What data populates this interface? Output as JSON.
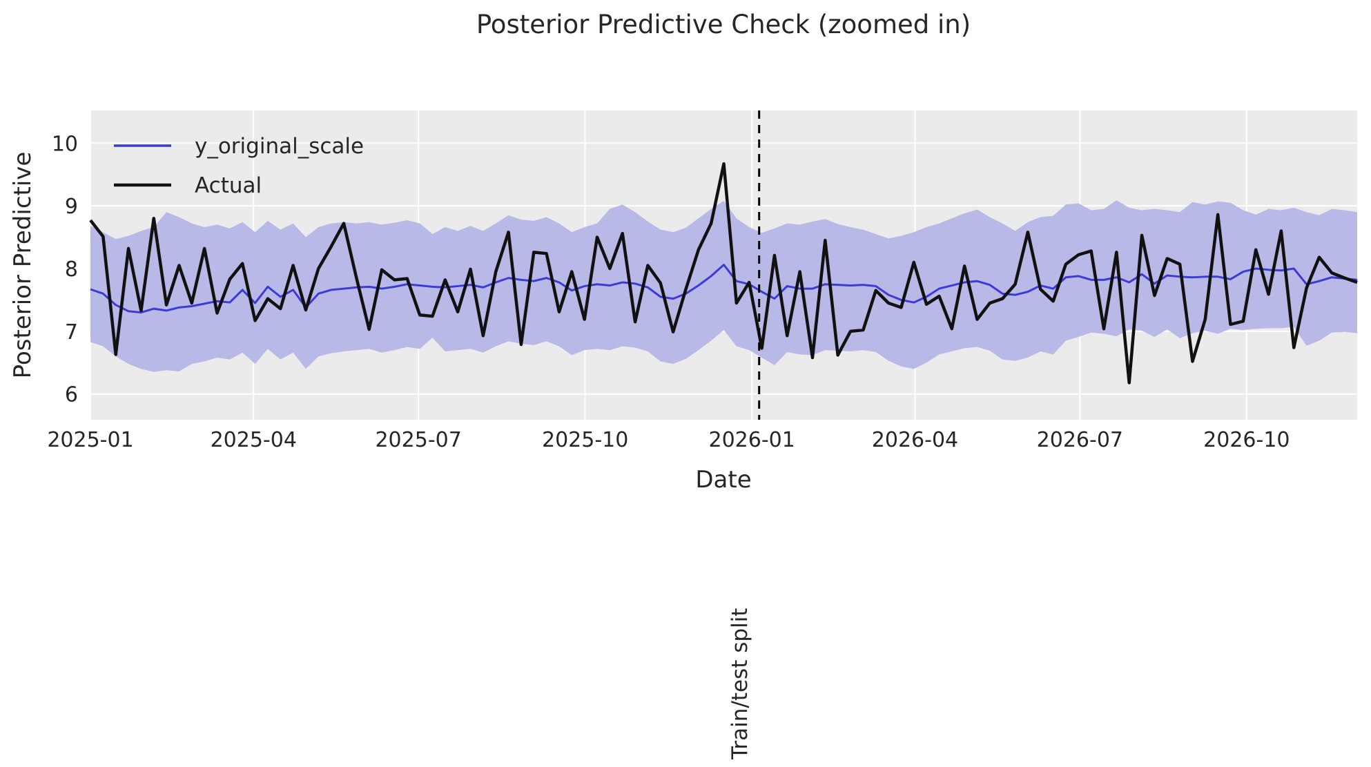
{
  "chart_data": {
    "type": "line",
    "title": "Posterior Predictive Check (zoomed in)",
    "xlabel": "Date",
    "ylabel": "Posterior Predictive",
    "legend_position": "upper left",
    "grid": true,
    "x_start_date": "2025-01-01",
    "x_end_date": "2026-12-01",
    "x_freq": "weekly",
    "n_points": 101,
    "x_total_days": 699,
    "ylim": [
      5.59,
      10.52
    ],
    "yticks": [
      6,
      7,
      8,
      9,
      10
    ],
    "ytick_labels": [
      "6",
      "7",
      "8",
      "9",
      "10"
    ],
    "xticks": [
      {
        "label": "2025-01",
        "day": 0
      },
      {
        "label": "2025-04",
        "day": 90
      },
      {
        "label": "2025-07",
        "day": 181
      },
      {
        "label": "2025-10",
        "day": 273
      },
      {
        "label": "2026-01",
        "day": 365
      },
      {
        "label": "2026-04",
        "day": 455
      },
      {
        "label": "2026-07",
        "day": 546
      },
      {
        "label": "2026-10",
        "day": 638
      }
    ],
    "split": {
      "label": "Train/test split",
      "date": "2026-01-05",
      "day": 369
    },
    "colors": {
      "figure_bg": "#ffffff",
      "plot_bg": "#ebebeb",
      "grid": "#ffffff",
      "text": "#262626",
      "blue_line": "#3b3bd6",
      "black_line": "#111111",
      "band": "#b9b9e8",
      "split_line": "#000000"
    },
    "legend": [
      {
        "label": "y_original_scale",
        "color": "#3b3bd6"
      },
      {
        "label": "Actual",
        "color": "#111111"
      }
    ],
    "series": [
      {
        "name": "y_original_scale",
        "values": [
          7.67,
          7.6,
          7.42,
          7.32,
          7.3,
          7.36,
          7.33,
          7.38,
          7.4,
          7.44,
          7.48,
          7.46,
          7.66,
          7.45,
          7.71,
          7.55,
          7.66,
          7.38,
          7.6,
          7.66,
          7.68,
          7.7,
          7.71,
          7.68,
          7.71,
          7.75,
          7.73,
          7.71,
          7.7,
          7.72,
          7.74,
          7.7,
          7.78,
          7.85,
          7.82,
          7.8,
          7.85,
          7.78,
          7.65,
          7.72,
          7.75,
          7.73,
          7.78,
          7.76,
          7.7,
          7.55,
          7.52,
          7.6,
          7.73,
          7.88,
          8.06,
          7.8,
          7.75,
          7.63,
          7.52,
          7.72,
          7.68,
          7.68,
          7.75,
          7.74,
          7.73,
          7.74,
          7.72,
          7.58,
          7.5,
          7.46,
          7.55,
          7.68,
          7.73,
          7.78,
          7.8,
          7.74,
          7.6,
          7.58,
          7.63,
          7.73,
          7.68,
          7.86,
          7.88,
          7.82,
          7.82,
          7.86,
          7.78,
          7.91,
          7.76,
          7.89,
          7.87,
          7.86,
          7.87,
          7.87,
          7.83,
          7.95,
          8.0,
          7.98,
          7.97,
          8.0,
          7.75,
          7.8,
          7.86,
          7.84,
          7.82
        ]
      },
      {
        "name": "Actual",
        "values": [
          8.77,
          8.51,
          6.63,
          8.32,
          7.33,
          8.8,
          7.42,
          8.05,
          7.45,
          8.32,
          7.29,
          7.83,
          8.08,
          7.17,
          7.52,
          7.36,
          8.05,
          7.34,
          8.0,
          8.35,
          8.72,
          7.85,
          7.03,
          7.98,
          7.82,
          7.84,
          7.26,
          7.24,
          7.82,
          7.31,
          7.99,
          6.93,
          7.95,
          8.58,
          6.79,
          8.26,
          8.24,
          7.31,
          7.95,
          7.19,
          8.5,
          8.0,
          8.56,
          7.15,
          8.05,
          7.77,
          6.99,
          7.67,
          8.3,
          8.72,
          9.67,
          7.45,
          7.78,
          6.73,
          8.21,
          6.93,
          7.95,
          6.58,
          8.45,
          6.62,
          7.0,
          7.02,
          7.65,
          7.45,
          7.38,
          8.1,
          7.43,
          7.56,
          7.04,
          8.04,
          7.19,
          7.45,
          7.52,
          7.75,
          8.58,
          7.67,
          7.48,
          8.07,
          8.22,
          8.28,
          7.04,
          8.26,
          6.18,
          8.53,
          7.57,
          8.16,
          8.07,
          6.52,
          7.19,
          8.86,
          7.11,
          7.16,
          8.3,
          7.59,
          8.6,
          6.74,
          7.69,
          8.18,
          7.93,
          7.85,
          7.78
        ]
      }
    ],
    "band_upper": [
      8.68,
      8.58,
      8.47,
      8.52,
      8.6,
      8.66,
      8.9,
      8.82,
      8.72,
      8.66,
      8.7,
      8.64,
      8.74,
      8.58,
      8.76,
      8.62,
      8.72,
      8.5,
      8.66,
      8.72,
      8.74,
      8.72,
      8.74,
      8.7,
      8.73,
      8.77,
      8.72,
      8.55,
      8.66,
      8.6,
      8.68,
      8.6,
      8.72,
      8.85,
      8.78,
      8.76,
      8.82,
      8.72,
      8.58,
      8.66,
      8.72,
      8.95,
      9.02,
      8.9,
      8.75,
      8.62,
      8.58,
      8.65,
      8.8,
      8.95,
      9.08,
      8.8,
      8.66,
      8.57,
      8.64,
      8.72,
      8.7,
      8.75,
      8.79,
      8.71,
      8.66,
      8.62,
      8.55,
      8.48,
      8.52,
      8.58,
      8.66,
      8.72,
      8.8,
      8.88,
      8.94,
      8.82,
      8.72,
      8.6,
      8.74,
      8.82,
      8.84,
      9.02,
      9.04,
      8.93,
      8.95,
      9.09,
      8.97,
      8.93,
      8.95,
      8.93,
      8.9,
      9.06,
      9.02,
      9.07,
      9.05,
      8.93,
      8.86,
      8.95,
      8.93,
      8.97,
      8.9,
      8.85,
      8.95,
      8.93,
      8.9
    ],
    "band_lower": [
      6.83,
      6.76,
      6.6,
      6.48,
      6.4,
      6.35,
      6.38,
      6.36,
      6.48,
      6.52,
      6.58,
      6.55,
      6.66,
      6.48,
      6.72,
      6.55,
      6.66,
      6.4,
      6.6,
      6.65,
      6.68,
      6.7,
      6.72,
      6.66,
      6.7,
      6.75,
      6.72,
      6.9,
      6.68,
      6.7,
      6.72,
      6.66,
      6.76,
      6.84,
      6.8,
      6.78,
      6.84,
      6.76,
      6.62,
      6.7,
      6.72,
      6.7,
      6.76,
      6.74,
      6.68,
      6.52,
      6.48,
      6.56,
      6.7,
      6.85,
      7.02,
      6.76,
      6.7,
      6.58,
      6.46,
      6.67,
      6.63,
      6.62,
      6.7,
      6.69,
      6.68,
      6.7,
      6.67,
      6.53,
      6.44,
      6.4,
      6.5,
      6.63,
      6.68,
      6.73,
      6.75,
      6.69,
      6.55,
      6.53,
      6.58,
      6.68,
      6.63,
      6.85,
      6.91,
      6.98,
      6.96,
      6.92,
      7.03,
      7.01,
      6.91,
      7.03,
      6.89,
      6.97,
      7.01,
      6.96,
      7.04,
      7.02,
      7.04,
      7.05,
      7.05,
      7.07,
      6.77,
      6.85,
      6.98,
      6.99,
      6.97
    ]
  }
}
